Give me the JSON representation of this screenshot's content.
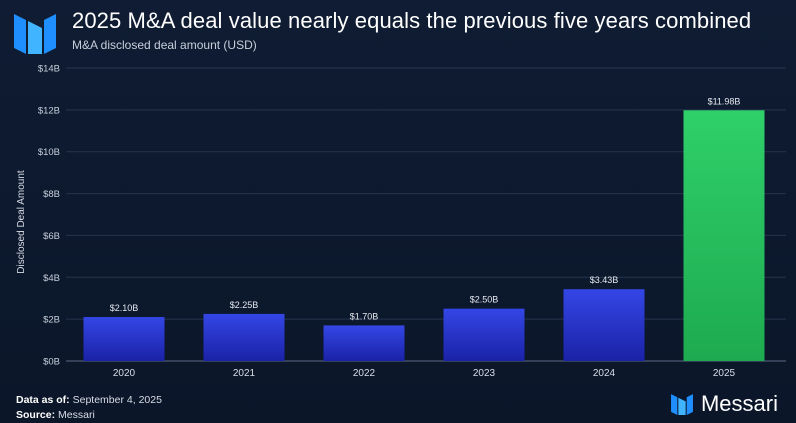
{
  "header": {
    "title": "2025 M&A deal value nearly equals the previous five years combined",
    "subtitle": "M&A disclosed deal amount (USD)"
  },
  "footer": {
    "data_as_of_label": "Data as of:",
    "data_as_of_value": "September 4, 2025",
    "source_label": "Source:",
    "source_value": "Messari",
    "brand": "Messari"
  },
  "icons": {
    "logo": "messari-logo-icon"
  },
  "colors": {
    "bar_default": "#2f3fd6",
    "bar_highlight": "#25c25f",
    "background": "#0f1c33"
  },
  "chart_data": {
    "type": "bar",
    "categories": [
      "2020",
      "2021",
      "2022",
      "2023",
      "2024",
      "2025"
    ],
    "values": [
      2.1,
      2.25,
      1.7,
      2.5,
      3.43,
      11.98
    ],
    "data_labels": [
      "$2.10B",
      "$2.25B",
      "$1.70B",
      "$2.50B",
      "$3.43B",
      "$11.98B"
    ],
    "title": "2025 M&A deal value nearly equals the previous five years combined",
    "subtitle": "M&A disclosed deal amount (USD)",
    "xlabel": "",
    "ylabel": "Disclosed Deal Amount",
    "ylim": [
      0,
      14
    ],
    "yticks": [
      0,
      2,
      4,
      6,
      8,
      10,
      12,
      14
    ],
    "ytick_labels": [
      "$0B",
      "$2B",
      "$4B",
      "$6B",
      "$8B",
      "$10B",
      "$12B",
      "$14B"
    ],
    "grid": true,
    "highlight_category": "2025"
  }
}
